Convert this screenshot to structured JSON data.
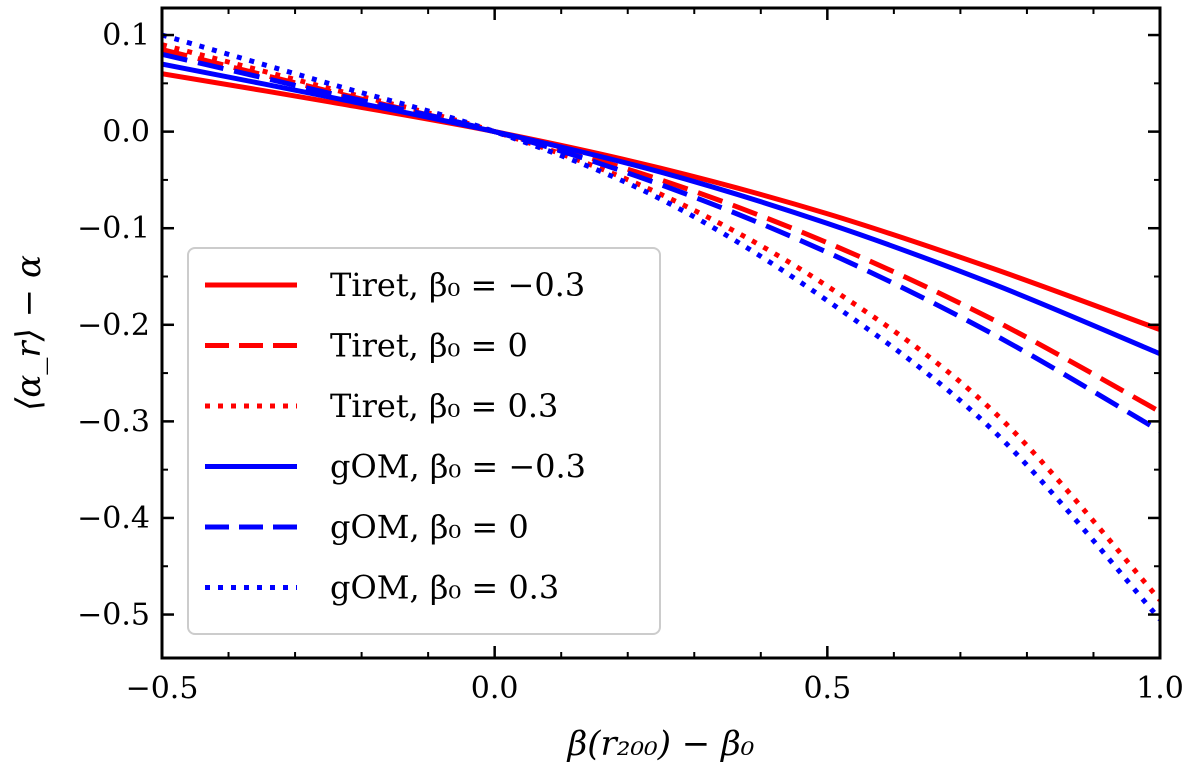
{
  "chart_data": {
    "type": "line",
    "title": "",
    "xlabel": "β(r₂₀₀) − β₀",
    "ylabel": "⟨α_r⟩ − α",
    "xlim": [
      -0.5,
      1.0
    ],
    "ylim": [
      -0.545,
      0.128
    ],
    "xticks": [
      -0.5,
      0.0,
      0.5,
      1.0
    ],
    "xtick_labels": [
      "−0.5",
      "0.0",
      "0.5",
      "1.0"
    ],
    "yticks": [
      0.1,
      0.0,
      -0.1,
      -0.2,
      -0.3,
      -0.4,
      -0.5
    ],
    "ytick_labels": [
      "0.1",
      "0.0",
      "−0.1",
      "−0.2",
      "−0.3",
      "−0.4",
      "−0.5"
    ],
    "grid": false,
    "legend_position": "lower-left",
    "x": [
      -0.5,
      -0.25,
      0.0,
      0.25,
      0.5,
      0.75,
      1.0
    ],
    "series": [
      {
        "name": "Tiret, β₀ = −0.3",
        "color": "#ff0000",
        "style": "solid",
        "values": [
          0.06,
          0.031,
          0.0,
          -0.038,
          -0.085,
          -0.142,
          -0.205
        ]
      },
      {
        "name": "Tiret, β₀ = 0",
        "color": "#ff0000",
        "style": "dashed",
        "values": [
          0.085,
          0.042,
          0.0,
          -0.05,
          -0.115,
          -0.195,
          -0.29
        ]
      },
      {
        "name": "Tiret, β₀ = 0.3",
        "color": "#ff0000",
        "style": "dotted",
        "values": [
          0.09,
          0.045,
          0.0,
          -0.065,
          -0.16,
          -0.29,
          -0.485
        ]
      },
      {
        "name": "gOM, β₀ = −0.3",
        "color": "#0000ff",
        "style": "solid",
        "values": [
          0.07,
          0.036,
          0.0,
          -0.042,
          -0.095,
          -0.158,
          -0.23
        ]
      },
      {
        "name": "gOM, β₀ = 0",
        "color": "#0000ff",
        "style": "dashed",
        "values": [
          0.08,
          0.04,
          0.0,
          -0.055,
          -0.125,
          -0.21,
          -0.31
        ]
      },
      {
        "name": "gOM, β₀ = 0.3",
        "color": "#0000ff",
        "style": "dotted",
        "values": [
          0.1,
          0.05,
          0.0,
          -0.07,
          -0.175,
          -0.31,
          -0.505
        ]
      }
    ]
  }
}
